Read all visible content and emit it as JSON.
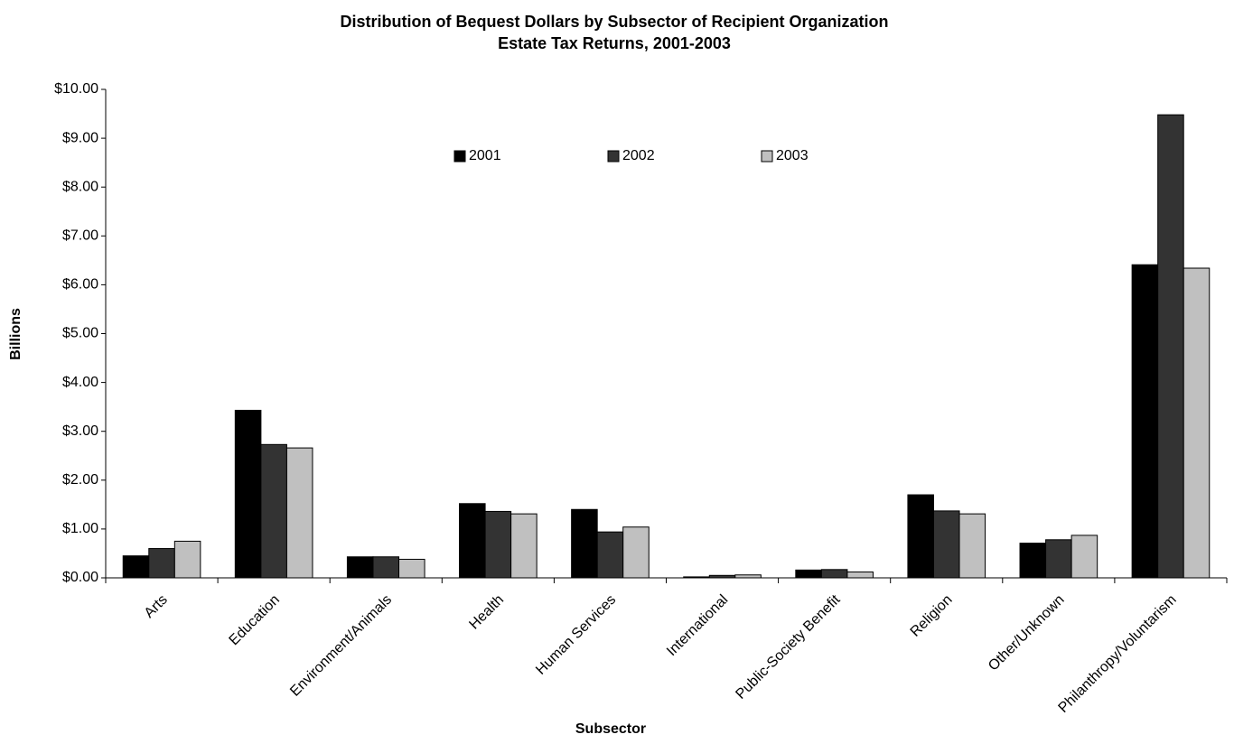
{
  "chart_data": {
    "type": "bar",
    "title": "Distribution of Bequest Dollars by Subsector of Recipient Organization",
    "subtitle": "Estate Tax Returns, 2001-2003",
    "x_label": "Subsector",
    "y_label": "Billions",
    "categories": [
      "Arts",
      "Education",
      "Environment/Animals",
      "Health",
      "Human Services",
      "International",
      "Public-Society Benefit",
      "Religion",
      "Other/Unknown",
      "Philanthropy/Voluntarism"
    ],
    "series": [
      {
        "name": "2001",
        "color": "#000000",
        "values": [
          0.45,
          3.43,
          0.43,
          1.52,
          1.4,
          0.02,
          0.16,
          1.7,
          0.71,
          6.41
        ]
      },
      {
        "name": "2002",
        "color": "#333333",
        "values": [
          0.6,
          2.73,
          0.43,
          1.36,
          0.94,
          0.05,
          0.17,
          1.37,
          0.78,
          9.48
        ]
      },
      {
        "name": "2003",
        "color": "#c0c0c0",
        "values": [
          0.75,
          2.66,
          0.38,
          1.31,
          1.04,
          0.06,
          0.12,
          1.31,
          0.87,
          6.34
        ]
      }
    ],
    "ylim": [
      0,
      10
    ],
    "yticks": [
      {
        "value": 0,
        "label": "$0.00"
      },
      {
        "value": 1,
        "label": "$1.00"
      },
      {
        "value": 2,
        "label": "$2.00"
      },
      {
        "value": 3,
        "label": "$3.00"
      },
      {
        "value": 4,
        "label": "$4.00"
      },
      {
        "value": 5,
        "label": "$5.00"
      },
      {
        "value": 6,
        "label": "$6.00"
      },
      {
        "value": 7,
        "label": "$7.00"
      },
      {
        "value": 8,
        "label": "$8.00"
      },
      {
        "value": 9,
        "label": "$9.00"
      },
      {
        "value": 10,
        "label": "$10.00"
      }
    ],
    "grid": false,
    "legend": "top"
  }
}
